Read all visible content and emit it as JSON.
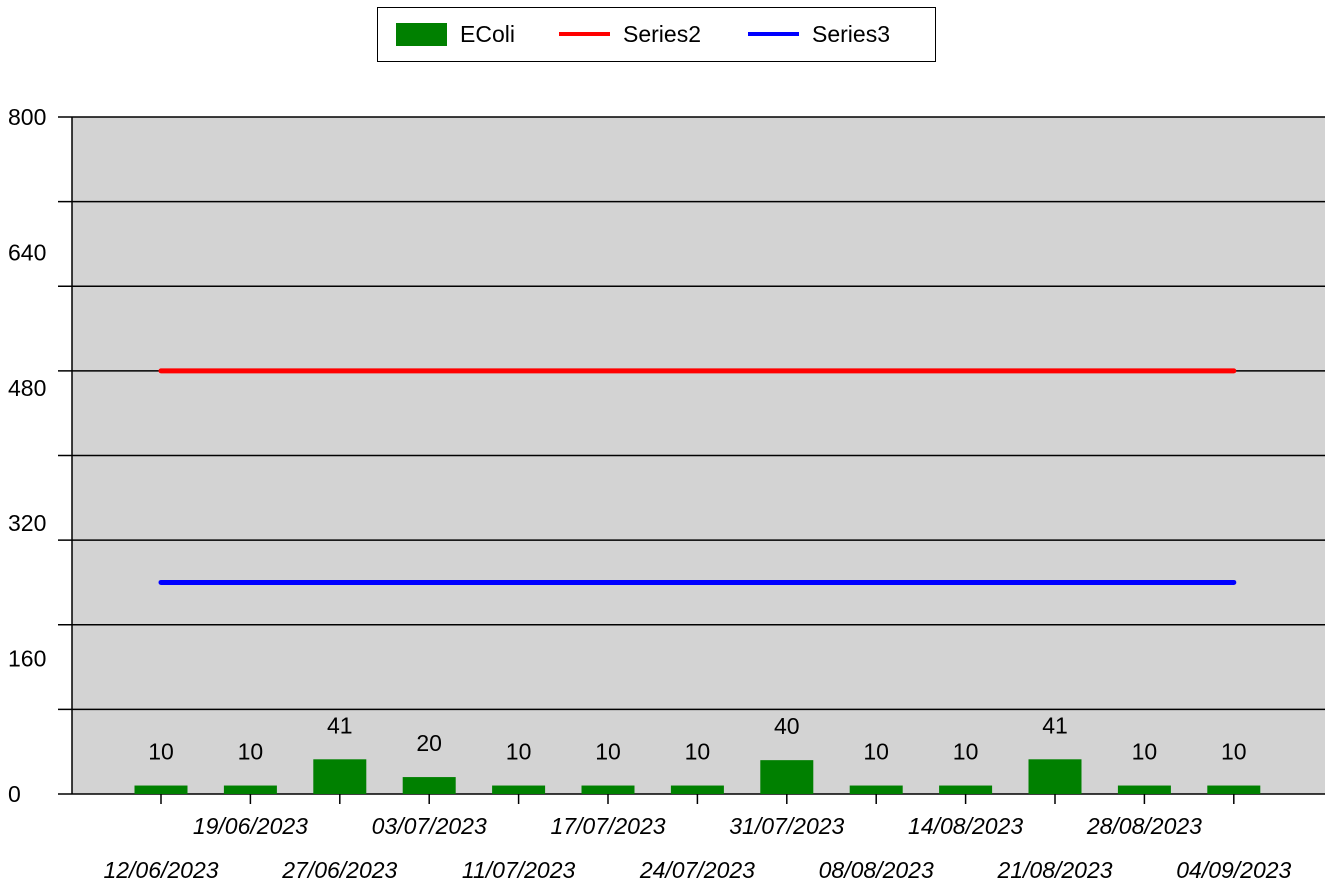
{
  "legend": {
    "items": [
      {
        "label": "EColi",
        "kind": "bar",
        "color": "#008000"
      },
      {
        "label": "Series2",
        "kind": "line",
        "color": "#ff0000"
      },
      {
        "label": "Series3",
        "kind": "line",
        "color": "#0000ff"
      }
    ]
  },
  "chart_data": {
    "type": "bar",
    "categories": [
      "12/06/2023",
      "19/06/2023",
      "27/06/2023",
      "03/07/2023",
      "11/07/2023",
      "17/07/2023",
      "24/07/2023",
      "31/07/2023",
      "08/08/2023",
      "14/08/2023",
      "21/08/2023",
      "28/08/2023",
      "04/09/2023"
    ],
    "series": [
      {
        "name": "EColi",
        "type": "bar",
        "color": "#008000",
        "values": [
          10,
          10,
          41,
          20,
          10,
          10,
          10,
          40,
          10,
          10,
          41,
          10,
          10
        ]
      },
      {
        "name": "Series2",
        "type": "line",
        "color": "#ff0000",
        "values": [
          500,
          500,
          500,
          500,
          500,
          500,
          500,
          500,
          500,
          500,
          500,
          500,
          500
        ]
      },
      {
        "name": "Series3",
        "type": "line",
        "color": "#0000ff",
        "values": [
          250,
          250,
          250,
          250,
          250,
          250,
          250,
          250,
          250,
          250,
          250,
          250,
          250
        ]
      }
    ],
    "data_labels": [
      "10",
      "10",
      "41",
      "20",
      "10",
      "10",
      "10",
      "40",
      "10",
      "10",
      "41",
      "10",
      "10"
    ],
    "ylim": [
      0,
      800
    ],
    "yticks": [
      0,
      160,
      320,
      480,
      640,
      800
    ],
    "grid_step": 100,
    "grid": true,
    "plot_background": "#d3d3d3",
    "legend_position": "top-center",
    "title": "",
    "xlabel": "",
    "ylabel": ""
  }
}
